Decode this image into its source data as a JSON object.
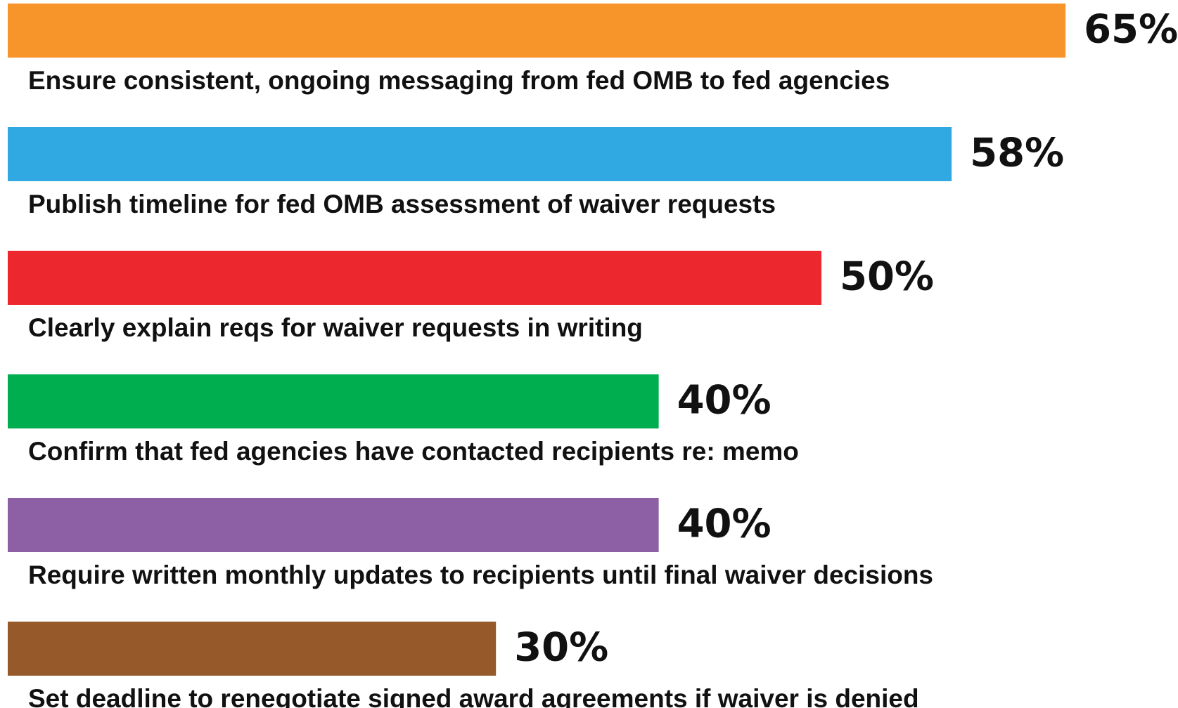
{
  "chart_data": {
    "type": "bar",
    "orientation": "horizontal",
    "categories": [
      "Ensure consistent, ongoing messaging  from fed OMB to fed agencies",
      "Publish timeline for fed OMB assessment of waiver requests",
      "Clearly explain reqs for waiver requests in writing",
      "Confirm that fed agencies have contacted recipients re: memo",
      "Require written monthly updates to recipients until final waiver decisions",
      "Set deadline to renegotiate signed award agreements if waiver is denied"
    ],
    "values": [
      65,
      58,
      50,
      40,
      40,
      30
    ],
    "value_labels": [
      "65%",
      "58%",
      "50%",
      "40%",
      "40%",
      "30%"
    ],
    "colors": [
      "#f7952a",
      "#30a9e3",
      "#ec272d",
      "#00ae4f",
      "#8d5fa4",
      "#965a2a"
    ]
  }
}
